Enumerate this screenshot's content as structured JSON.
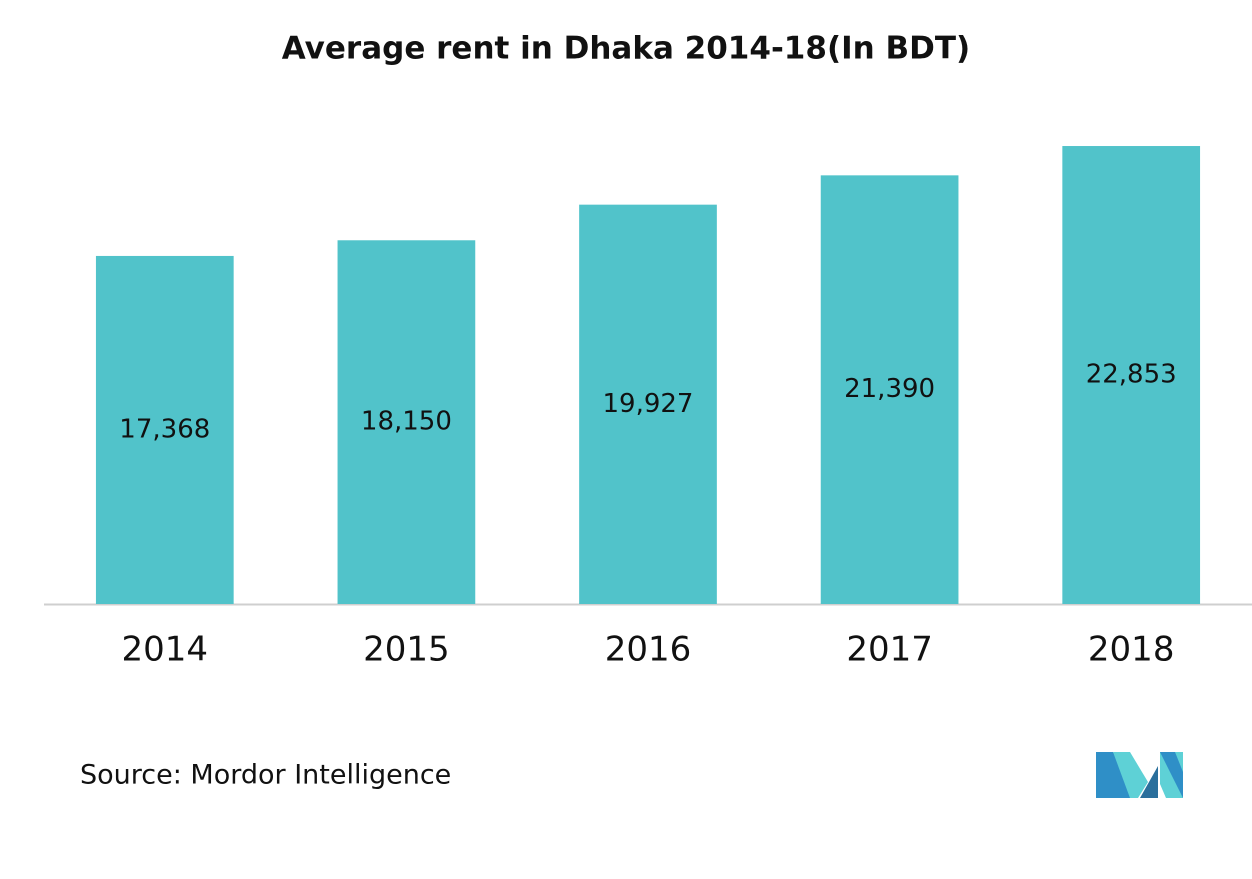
{
  "chart_data": {
    "type": "bar",
    "title": "Average rent in Dhaka 2014-18(In BDT)",
    "categories": [
      "2014",
      "2015",
      "2016",
      "2017",
      "2018"
    ],
    "values": [
      17368,
      18150,
      19927,
      21390,
      22853
    ],
    "value_labels": [
      "17,368",
      "18,150",
      "19,927",
      "21,390",
      "22,853"
    ],
    "color": "#51c3ca",
    "ylim": [
      0,
      25000
    ],
    "source": "Source: Mordor Intelligence"
  }
}
